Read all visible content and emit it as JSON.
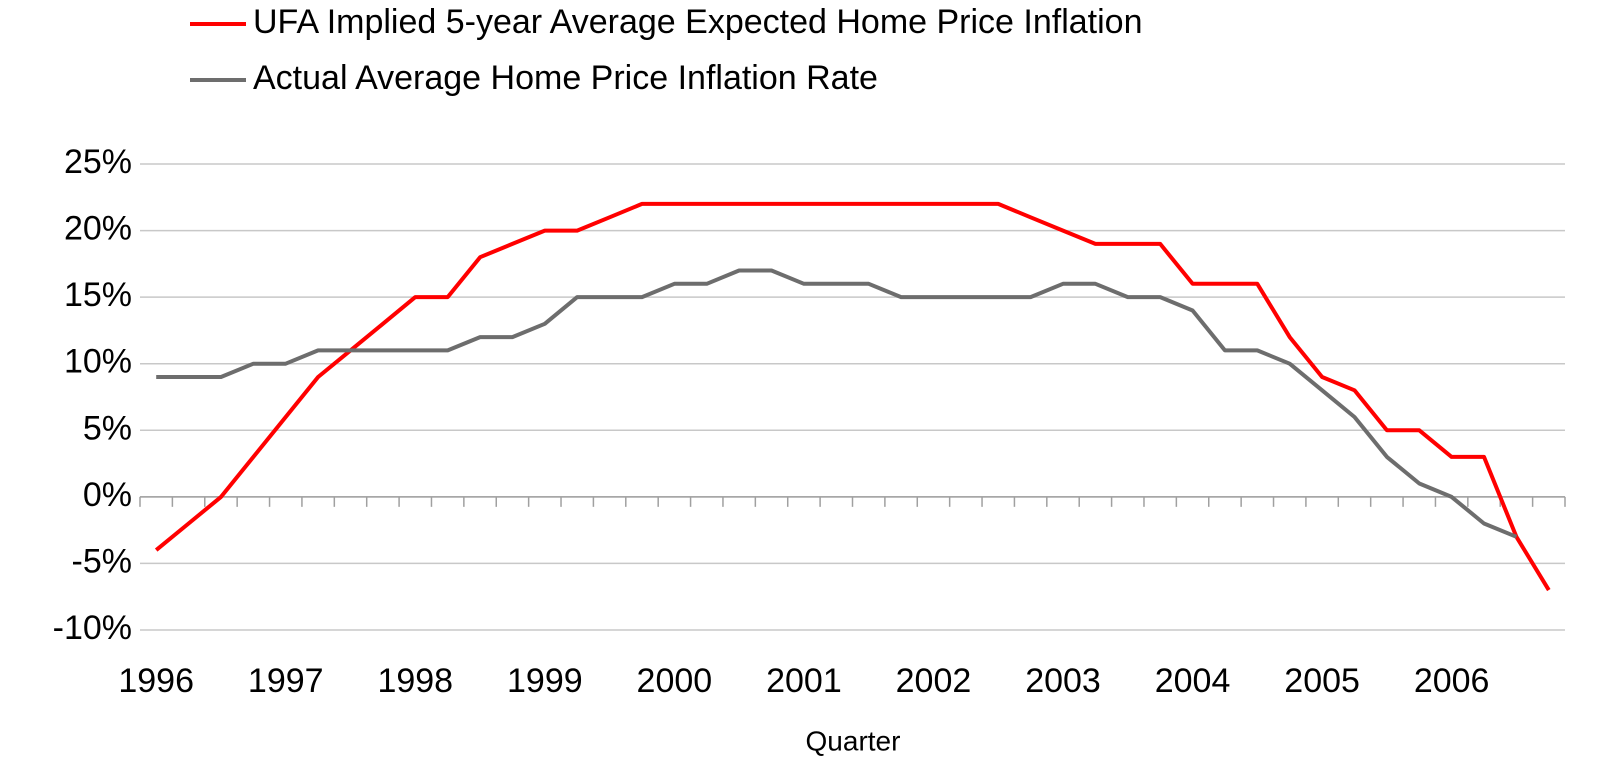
{
  "chart_data": {
    "type": "line",
    "x_label": "Quarter",
    "categories": [
      "1996",
      null,
      null,
      null,
      "1997",
      null,
      null,
      null,
      "1998",
      null,
      null,
      null,
      "1999",
      null,
      null,
      null,
      "2000",
      null,
      null,
      null,
      "2001",
      null,
      null,
      null,
      "2002",
      null,
      null,
      null,
      "2003",
      null,
      null,
      null,
      "2004",
      null,
      null,
      null,
      "2005",
      null,
      null,
      null,
      "2006",
      null,
      null,
      null
    ],
    "series": [
      {
        "name": "UFA Implied 5-year Average Expected Home Price Inflation",
        "color": "#ff0000",
        "values": [
          -4,
          -2,
          0,
          3,
          6,
          9,
          11,
          13,
          15,
          15,
          18,
          19,
          20,
          20,
          21,
          22,
          22,
          22,
          22,
          22,
          22,
          22,
          22,
          22,
          22,
          22,
          22,
          21,
          20,
          19,
          19,
          19,
          16,
          16,
          16,
          12,
          9,
          8,
          5,
          5,
          3,
          3,
          -3,
          -7
        ]
      },
      {
        "name": "Actual Average Home Price Inflation Rate",
        "color": "#6d6d6d",
        "values": [
          9,
          9,
          9,
          10,
          10,
          11,
          11,
          11,
          11,
          11,
          12,
          12,
          13,
          15,
          15,
          15,
          16,
          16,
          17,
          17,
          16,
          16,
          16,
          15,
          15,
          15,
          15,
          15,
          16,
          16,
          15,
          15,
          14,
          11,
          11,
          10,
          8,
          6,
          3,
          1,
          0,
          -2,
          -3,
          null
        ]
      }
    ],
    "ylim": [
      -10,
      25
    ],
    "yticks": [
      {
        "value": -10,
        "label": "-10%"
      },
      {
        "value": -5,
        "label": "-5%"
      },
      {
        "value": 0,
        "label": "0%"
      },
      {
        "value": 5,
        "label": "5%"
      },
      {
        "value": 10,
        "label": "10%"
      },
      {
        "value": 15,
        "label": "15%"
      },
      {
        "value": 20,
        "label": "20%"
      },
      {
        "value": 25,
        "label": "25%"
      }
    ],
    "grid": true,
    "legend": "top"
  }
}
